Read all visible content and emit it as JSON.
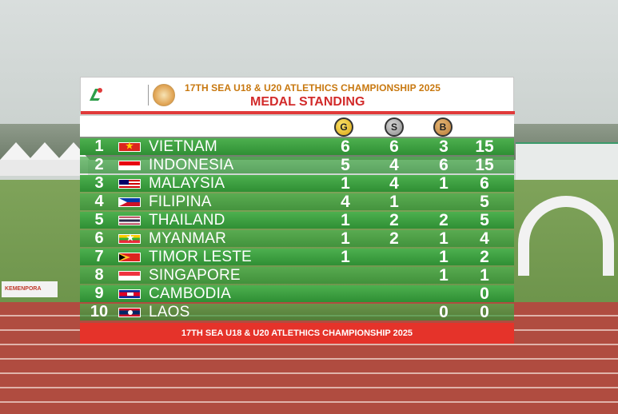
{
  "header": {
    "title": "17TH SEA U18 & U20 ATLETHICS CHAMPIONSHIP 2025",
    "subtitle": "MEDAL STANDING"
  },
  "medals": {
    "gold": "G",
    "silver": "S",
    "bronze": "B"
  },
  "standings": [
    {
      "rank": "1",
      "country": "VIETNAM",
      "flag": "vietnam-flag-icon",
      "gold": "6",
      "silver": "6",
      "bronze": "3",
      "total": "15"
    },
    {
      "rank": "2",
      "country": "INDONESIA",
      "flag": "indonesia-flag-icon",
      "gold": "5",
      "silver": "4",
      "bronze": "6",
      "total": "15"
    },
    {
      "rank": "3",
      "country": "MALAYSIA",
      "flag": "malaysia-flag-icon",
      "gold": "1",
      "silver": "4",
      "bronze": "1",
      "total": "6"
    },
    {
      "rank": "4",
      "country": "FILIPINA",
      "flag": "philippines-flag-icon",
      "gold": "4",
      "silver": "1",
      "bronze": "",
      "total": "5"
    },
    {
      "rank": "5",
      "country": "THAILAND",
      "flag": "thailand-flag-icon",
      "gold": "1",
      "silver": "2",
      "bronze": "2",
      "total": "5"
    },
    {
      "rank": "6",
      "country": "MYANMAR",
      "flag": "myanmar-flag-icon",
      "gold": "1",
      "silver": "2",
      "bronze": "1",
      "total": "4"
    },
    {
      "rank": "7",
      "country": "TIMOR LESTE",
      "flag": "timor-leste-flag-icon",
      "gold": "1",
      "silver": "",
      "bronze": "1",
      "total": "2"
    },
    {
      "rank": "8",
      "country": "SINGAPORE",
      "flag": "singapore-flag-icon",
      "gold": "",
      "silver": "",
      "bronze": "1",
      "total": "1"
    },
    {
      "rank": "9",
      "country": "CAMBODIA",
      "flag": "cambodia-flag-icon",
      "gold": "",
      "silver": "",
      "bronze": "",
      "total": "0"
    },
    {
      "rank": "10",
      "country": "LAOS",
      "flag": "laos-flag-icon",
      "gold": "",
      "silver": "",
      "bronze": "0",
      "total": "0"
    }
  ],
  "footer": {
    "text": "17TH SEA U18 & U20 ATLETHICS CHAMPIONSHIP 2025"
  },
  "colors": {
    "row_green": "#3a9e3e",
    "header_red": "#d22b2b",
    "title_orange": "#c8780f",
    "footer_red": "#e5332a"
  }
}
